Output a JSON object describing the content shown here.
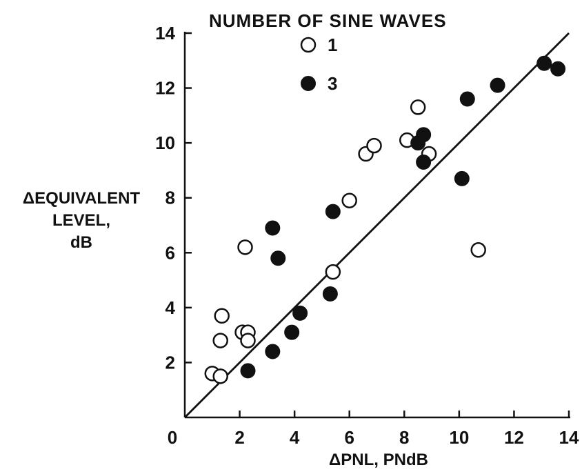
{
  "chart_data": {
    "type": "scatter",
    "title": "",
    "xlabel": "ΔPNL,  PNdB",
    "ylabel_lines": [
      "ΔEQUIVALENT",
      "LEVEL,",
      "dB"
    ],
    "xlim": [
      0,
      14
    ],
    "ylim": [
      0,
      14
    ],
    "x_ticks": [
      0,
      2,
      4,
      6,
      8,
      10,
      12,
      14
    ],
    "y_ticks": [
      2,
      4,
      6,
      8,
      10,
      12,
      14
    ],
    "grid": false,
    "legend": {
      "title": "NUMBER OF SINE WAVES",
      "placement": "top-center",
      "entries": [
        {
          "label": "1",
          "marker": "open-circle"
        },
        {
          "label": "3",
          "marker": "filled-circle"
        }
      ]
    },
    "reference_line": {
      "x": [
        0,
        14
      ],
      "y": [
        0,
        14
      ]
    },
    "series": [
      {
        "name": "1",
        "marker": "open-circle",
        "points": [
          [
            1.0,
            1.6
          ],
          [
            1.3,
            1.5
          ],
          [
            1.3,
            2.8
          ],
          [
            1.35,
            3.7
          ],
          [
            2.1,
            3.1
          ],
          [
            2.3,
            3.1
          ],
          [
            2.3,
            2.8
          ],
          [
            2.2,
            6.2
          ],
          [
            5.4,
            5.3
          ],
          [
            6.0,
            7.9
          ],
          [
            6.6,
            9.6
          ],
          [
            6.9,
            9.9
          ],
          [
            8.1,
            10.1
          ],
          [
            8.5,
            11.3
          ],
          [
            8.9,
            9.6
          ],
          [
            10.7,
            6.1
          ]
        ]
      },
      {
        "name": "3",
        "marker": "filled-circle",
        "points": [
          [
            2.3,
            1.7
          ],
          [
            3.2,
            2.4
          ],
          [
            3.9,
            3.1
          ],
          [
            4.2,
            3.8
          ],
          [
            5.3,
            4.5
          ],
          [
            3.2,
            6.9
          ],
          [
            3.4,
            5.8
          ],
          [
            5.4,
            7.5
          ],
          [
            8.5,
            10.0
          ],
          [
            8.7,
            10.3
          ],
          [
            8.7,
            9.3
          ],
          [
            10.1,
            8.7
          ],
          [
            10.3,
            11.6
          ],
          [
            11.4,
            12.1
          ],
          [
            13.1,
            12.9
          ],
          [
            13.6,
            12.7
          ]
        ]
      }
    ]
  }
}
